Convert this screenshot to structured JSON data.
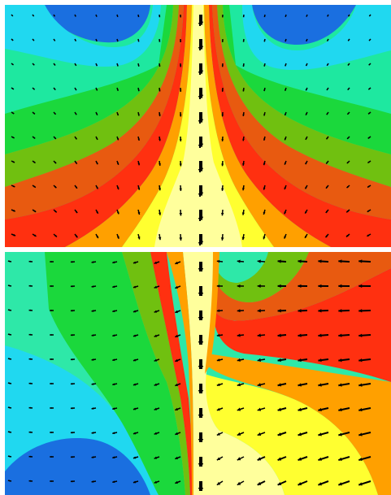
{
  "figure": {
    "description_free": true,
    "panels": [
      {
        "id": "top",
        "colors": {
          "deep_blue": "#1a6fe0",
          "cyan": "#20d8f0",
          "aqua_green": "#1ee8a0",
          "green": "#1bd83c",
          "yellow_green": "#70c010",
          "red_orange": "#e85a10",
          "red": "#ff3010",
          "orange": "#ffa000",
          "yellow": "#ffff30",
          "pale_yellow": "#ffff9c"
        }
      },
      {
        "id": "bottom",
        "colors": {
          "deep_blue": "#1a6fe0",
          "cyan": "#20d8f0",
          "aqua_green": "#2ee8a8",
          "green": "#1bd83c",
          "yellow_green": "#70c010",
          "red_orange": "#e85a10",
          "red": "#ff3010",
          "orange": "#ffa000",
          "yellow": "#ffff30",
          "pale_yellow": "#ffff9c"
        }
      }
    ],
    "separator_color": "#ffffff",
    "arrow_color": "#000000"
  }
}
